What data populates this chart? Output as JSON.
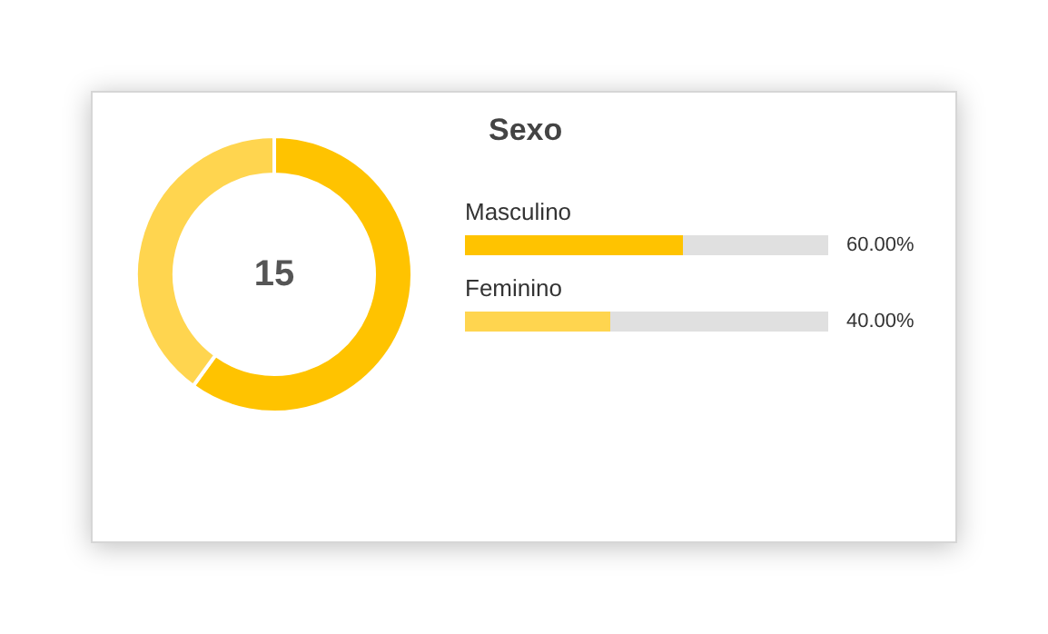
{
  "chart_data": [
    {
      "type": "donut",
      "categories": [
        null,
        null
      ],
      "values": [
        60,
        40
      ],
      "colors": [
        "#ffc300",
        "#ffd54f"
      ],
      "annotations": [
        "15"
      ]
    },
    {
      "type": "bar",
      "title": "Sexo",
      "orientation": "horizontal",
      "categories": [
        "Masculino",
        "Feminino"
      ],
      "values": [
        60,
        40
      ],
      "colors": [
        "#ffc300",
        "#ffd54f"
      ],
      "value_labels": [
        "60.00%",
        "40.00%"
      ],
      "xlim": [
        0,
        100
      ],
      "tick_labels": false
    }
  ]
}
